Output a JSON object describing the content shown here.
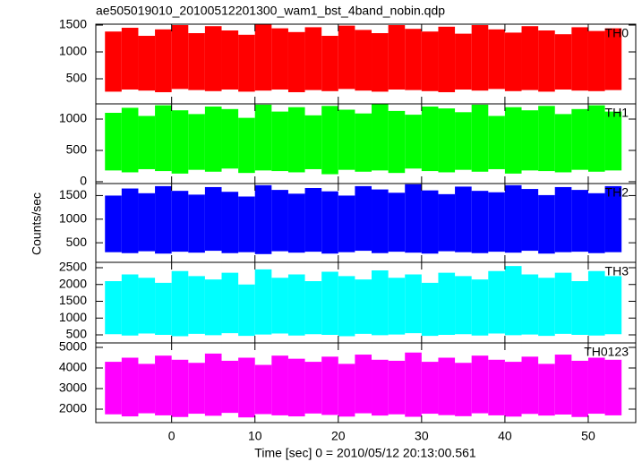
{
  "chart_data": [
    {
      "type": "range",
      "title": "ae505019010_20100512201300_wam1_bst_4band_nobin.qdp",
      "bins": [
        -8,
        -6,
        -4,
        -2,
        0,
        2,
        4,
        6,
        8,
        10,
        12,
        14,
        16,
        18,
        20,
        22,
        24,
        26,
        28,
        30,
        32,
        34,
        36,
        38,
        40,
        42,
        44,
        46,
        48,
        50,
        52,
        54
      ],
      "xlim": [
        -9.1,
        55.7
      ],
      "xticks": [
        0,
        10,
        20,
        30,
        40,
        50
      ],
      "ylim": [
        33,
        1517
      ],
      "yticks": [
        500,
        1000,
        1500
      ],
      "series": [
        {
          "name": "TH0",
          "color": "#ff0000",
          "low": [
            260,
            300,
            280,
            250,
            310,
            290,
            270,
            300,
            260,
            280,
            300,
            250,
            290,
            270,
            310,
            280,
            260,
            300,
            290,
            270,
            250,
            300,
            280,
            310,
            270,
            290,
            260,
            300,
            280,
            270,
            290
          ],
          "high": [
            1380,
            1450,
            1300,
            1420,
            1500,
            1350,
            1480,
            1400,
            1320,
            1510,
            1440,
            1370,
            1460,
            1300,
            1490,
            1410,
            1350,
            1500,
            1430,
            1380,
            1470,
            1340,
            1500,
            1420,
            1360,
            1480,
            1400,
            1330,
            1460,
            1390,
            1440
          ]
        }
      ]
    },
    {
      "type": "range",
      "bins": [
        -8,
        -6,
        -4,
        -2,
        0,
        2,
        4,
        6,
        8,
        10,
        12,
        14,
        16,
        18,
        20,
        22,
        24,
        26,
        28,
        30,
        32,
        34,
        36,
        38,
        40,
        42,
        44,
        46,
        48,
        50,
        52,
        54
      ],
      "xlim": [
        -9.1,
        55.7
      ],
      "xticks": [
        0,
        10,
        20,
        30,
        40,
        50
      ],
      "ylim": [
        -29,
        1243
      ],
      "yticks": [
        0,
        500,
        1000
      ],
      "series": [
        {
          "name": "TH1",
          "color": "#00ff00",
          "low": [
            180,
            150,
            200,
            170,
            130,
            190,
            160,
            210,
            140,
            180,
            170,
            150,
            200,
            120,
            190,
            160,
            180,
            140,
            210,
            170,
            150,
            190,
            160,
            200,
            130,
            180,
            170,
            150,
            190,
            160,
            180
          ],
          "high": [
            1100,
            1180,
            1050,
            1220,
            1140,
            1080,
            1200,
            1160,
            1020,
            1230,
            1120,
            1190,
            1060,
            1210,
            1150,
            1090,
            1240,
            1130,
            1070,
            1200,
            1170,
            1110,
            1230,
            1050,
            1190,
            1140,
            1210,
            1080,
            1160,
            1220,
            1120
          ]
        }
      ]
    },
    {
      "type": "range",
      "ylabel": "Counts/sec",
      "bins": [
        -8,
        -6,
        -4,
        -2,
        0,
        2,
        4,
        6,
        8,
        10,
        12,
        14,
        16,
        18,
        20,
        22,
        24,
        26,
        28,
        30,
        32,
        34,
        36,
        38,
        40,
        42,
        44,
        46,
        48,
        50,
        52,
        54
      ],
      "xlim": [
        -9.1,
        55.7
      ],
      "xticks": [
        0,
        10,
        20,
        30,
        40,
        50
      ],
      "ylim": [
        85,
        1755
      ],
      "yticks": [
        500,
        1000,
        1500
      ],
      "series": [
        {
          "name": "TH2",
          "color": "#0000ff",
          "low": [
            300,
            280,
            320,
            270,
            310,
            290,
            330,
            280,
            300,
            260,
            320,
            290,
            310,
            270,
            300,
            330,
            280,
            310,
            290,
            270,
            320,
            300,
            280,
            310,
            290,
            330,
            270,
            300,
            310,
            280,
            300
          ],
          "high": [
            1500,
            1650,
            1550,
            1700,
            1600,
            1520,
            1680,
            1580,
            1480,
            1720,
            1620,
            1540,
            1660,
            1590,
            1500,
            1700,
            1630,
            1560,
            1740,
            1610,
            1530,
            1690,
            1600,
            1570,
            1720,
            1640,
            1510,
            1680,
            1620,
            1550,
            1700
          ]
        }
      ]
    },
    {
      "type": "range",
      "bins": [
        -8,
        -6,
        -4,
        -2,
        0,
        2,
        4,
        6,
        8,
        10,
        12,
        14,
        16,
        18,
        20,
        22,
        24,
        26,
        28,
        30,
        32,
        34,
        36,
        38,
        40,
        42,
        44,
        46,
        48,
        50,
        52,
        54
      ],
      "xlim": [
        -9.1,
        55.7
      ],
      "xticks": [
        0,
        10,
        20,
        30,
        40,
        50
      ],
      "ylim": [
        260,
        2660
      ],
      "yticks": [
        500,
        1000,
        1500,
        2000,
        2500
      ],
      "series": [
        {
          "name": "TH3",
          "color": "#00ffff",
          "low": [
            520,
            480,
            540,
            500,
            460,
            530,
            490,
            550,
            470,
            510,
            540,
            480,
            520,
            500,
            460,
            530,
            490,
            510,
            550,
            470,
            500,
            520,
            480,
            540,
            490,
            510,
            470,
            530,
            500,
            480,
            520
          ],
          "high": [
            2100,
            2300,
            2200,
            2050,
            2400,
            2250,
            2150,
            2350,
            2000,
            2450,
            2200,
            2300,
            2100,
            2380,
            2250,
            2150,
            2420,
            2200,
            2300,
            2050,
            2350,
            2250,
            2150,
            2400,
            2550,
            2300,
            2200,
            2350,
            2100,
            2400,
            2250
          ]
        }
      ]
    },
    {
      "type": "range",
      "xlabel": "Time [sec] 0 = 2010/05/12 20:13:00.561",
      "bins": [
        -8,
        -6,
        -4,
        -2,
        0,
        2,
        4,
        6,
        8,
        10,
        12,
        14,
        16,
        18,
        20,
        22,
        24,
        26,
        28,
        30,
        32,
        34,
        36,
        38,
        40,
        42,
        44,
        46,
        48,
        50,
        52,
        54
      ],
      "xlim": [
        -9.1,
        55.7
      ],
      "xticks": [
        0,
        10,
        20,
        30,
        40,
        50
      ],
      "ylim": [
        1348,
        5217
      ],
      "yticks": [
        2000,
        3000,
        4000,
        5000
      ],
      "series": [
        {
          "name": "TH0123",
          "color": "#ff00ff",
          "low": [
            1750,
            1650,
            1800,
            1700,
            1620,
            1780,
            1680,
            1820,
            1600,
            1760,
            1700,
            1650,
            1790,
            1720,
            1640,
            1800,
            1690,
            1750,
            1630,
            1780,
            1710,
            1660,
            1800,
            1700,
            1640,
            1770,
            1690,
            1740,
            1620,
            1780,
            1700
          ],
          "high": [
            4300,
            4500,
            4200,
            4600,
            4400,
            4250,
            4700,
            4350,
            4500,
            4150,
            4600,
            4450,
            4300,
            4550,
            4200,
            4650,
            4400,
            4350,
            4750,
            4300,
            4500,
            4250,
            4600,
            4400,
            4300,
            4550,
            4200,
            4650,
            4350,
            4500,
            4400
          ]
        }
      ]
    }
  ]
}
